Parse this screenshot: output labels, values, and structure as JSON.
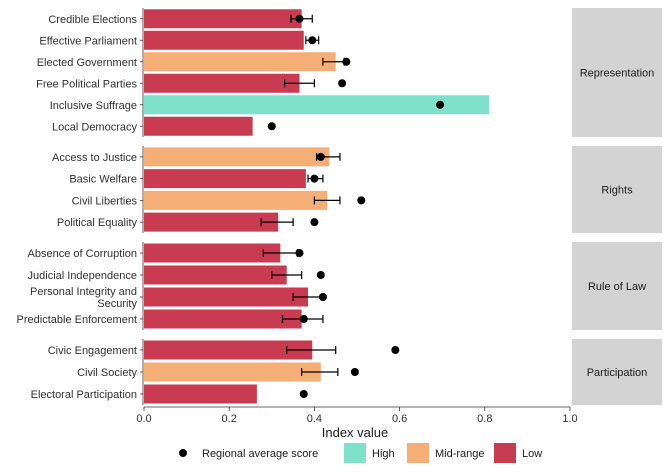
{
  "chart_data": {
    "type": "bar",
    "orientation": "horizontal",
    "xlabel": "Index value",
    "xlim": [
      0,
      1.0
    ],
    "x_ticks": [
      "0.0",
      "0.2",
      "0.4",
      "0.6",
      "0.8",
      "1.0"
    ],
    "x_tick_values": [
      0,
      0.2,
      0.4,
      0.6,
      0.8,
      1.0
    ],
    "colors": {
      "High": "#7fe0cb",
      "Mid-range": "#f5ae75",
      "Low": "#c93b50",
      "point": "#000000",
      "strip": "#d3d3d3"
    },
    "facets": [
      {
        "label": "Representation",
        "rows": [
          {
            "category": "Credible Elections",
            "value": 0.37,
            "level": "Low",
            "avg": 0.365,
            "err": [
              0.345,
              0.395
            ]
          },
          {
            "category": "Effective Parliament",
            "value": 0.375,
            "level": "Low",
            "avg": 0.395,
            "err": [
              0.38,
              0.41
            ]
          },
          {
            "category": "Elected Government",
            "value": 0.45,
            "level": "Mid-range",
            "avg": 0.475,
            "err": [
              0.42,
              0.47
            ]
          },
          {
            "category": "Free Political Parties",
            "value": 0.365,
            "level": "Low",
            "avg": 0.465,
            "err": [
              0.33,
              0.4
            ]
          },
          {
            "category": "Inclusive Suffrage",
            "value": 0.81,
            "level": "High",
            "avg": 0.695,
            "err": null
          },
          {
            "category": "Local Democracy",
            "value": 0.255,
            "level": "Low",
            "avg": 0.3,
            "err": null
          }
        ]
      },
      {
        "label": "Rights",
        "rows": [
          {
            "category": "Access to Justice",
            "value": 0.435,
            "level": "Mid-range",
            "avg": 0.415,
            "err": [
              0.405,
              0.46
            ]
          },
          {
            "category": "Basic Welfare",
            "value": 0.38,
            "level": "Low",
            "avg": 0.4,
            "err": [
              0.385,
              0.42
            ]
          },
          {
            "category": "Civil Liberties",
            "value": 0.43,
            "level": "Mid-range",
            "avg": 0.51,
            "err": [
              0.4,
              0.46
            ]
          },
          {
            "category": "Political Equality",
            "value": 0.315,
            "level": "Low",
            "avg": 0.4,
            "err": [
              0.275,
              0.35
            ]
          }
        ]
      },
      {
        "label": "Rule of Law",
        "rows": [
          {
            "category": "Absence of Corruption",
            "value": 0.32,
            "level": "Low",
            "avg": 0.365,
            "err": [
              0.28,
              0.36
            ]
          },
          {
            "category": "Judicial Independence",
            "value": 0.335,
            "level": "Low",
            "avg": 0.415,
            "err": [
              0.3,
              0.37
            ]
          },
          {
            "category": "Personal Integrity and Security",
            "value": 0.385,
            "level": "Low",
            "avg": 0.42,
            "err": [
              0.35,
              0.42
            ]
          },
          {
            "category": "Predictable Enforcement",
            "value": 0.37,
            "level": "Low",
            "avg": 0.375,
            "err": [
              0.325,
              0.42
            ]
          }
        ]
      },
      {
        "label": "Participation",
        "rows": [
          {
            "category": "Civic Engagement",
            "value": 0.395,
            "level": "Low",
            "avg": 0.59,
            "err": [
              0.335,
              0.45
            ]
          },
          {
            "category": "Civil Society",
            "value": 0.415,
            "level": "Mid-range",
            "avg": 0.495,
            "err": [
              0.37,
              0.455
            ]
          },
          {
            "category": "Electoral Participation",
            "value": 0.265,
            "level": "Low",
            "avg": 0.375,
            "err": null
          }
        ]
      }
    ],
    "legend": [
      {
        "type": "point",
        "label": "Regional average score"
      },
      {
        "type": "box",
        "label": "High",
        "level": "High"
      },
      {
        "type": "box",
        "label": "Mid-range",
        "level": "Mid-range"
      },
      {
        "type": "box",
        "label": "Low",
        "level": "Low"
      }
    ],
    "legend_position": "bottom",
    "grid": false
  }
}
